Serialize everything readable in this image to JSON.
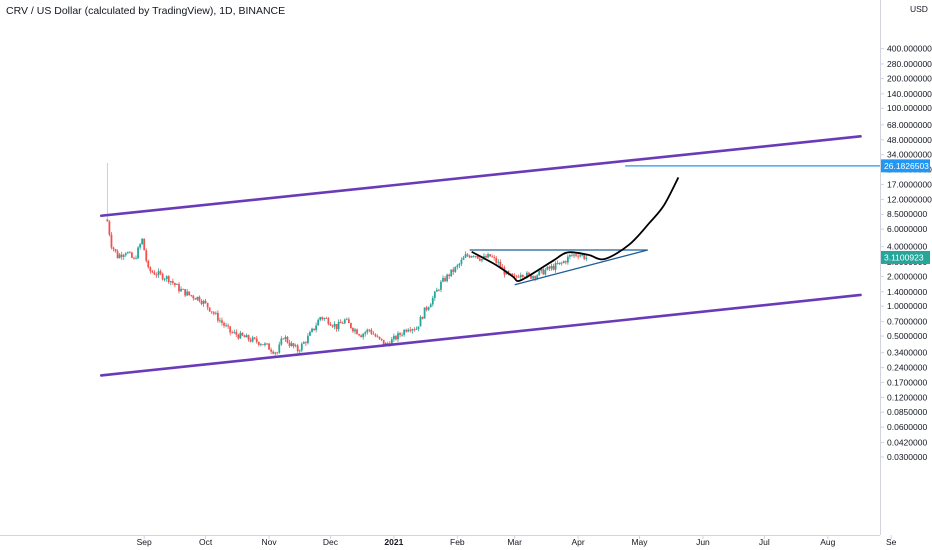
{
  "chart_data": {
    "type": "candlestick",
    "title": "CRV / US Dollar (calculated by TradingView), 1D, BINANCE",
    "y_scale": "log",
    "currency": "USD",
    "colors": {
      "up": "#26a69a",
      "down": "#ef5350",
      "channel": "#6a3ab8",
      "triangle": "#1f5f99",
      "projection": "#000000",
      "target_line": "#2196f3",
      "target_label_bg": "#2196f3",
      "last_price_bg": "#26a69a",
      "axis_text": "#131722",
      "axis_line": "#d1d4dc"
    },
    "y_ticks": [
      "400.0000000",
      "280.0000000",
      "200.0000000",
      "140.0000000",
      "100.0000000",
      "68.0000000",
      "48.0000000",
      "34.0000000",
      "24.0000000",
      "17.0000000",
      "12.0000000",
      "8.5000000",
      "6.0000000",
      "4.0000000",
      "2.8000000",
      "2.0000000",
      "1.4000000",
      "1.0000000",
      "0.7000000",
      "0.5000000",
      "0.3400000",
      "0.2400000",
      "0.1700000",
      "0.1200000",
      "0.0850000",
      "0.0600000",
      "0.0420000",
      "0.0300000"
    ],
    "x_ticks": [
      {
        "label": "Sep",
        "bold": false
      },
      {
        "label": "Oct",
        "bold": false
      },
      {
        "label": "Nov",
        "bold": false
      },
      {
        "label": "Dec",
        "bold": false
      },
      {
        "label": "2021",
        "bold": true
      },
      {
        "label": "Feb",
        "bold": false
      },
      {
        "label": "Mar",
        "bold": false
      },
      {
        "label": "Apr",
        "bold": false
      },
      {
        "label": "May",
        "bold": false
      },
      {
        "label": "Jun",
        "bold": false
      },
      {
        "label": "Jul",
        "bold": false
      },
      {
        "label": "Aug",
        "bold": false
      },
      {
        "label": "Se",
        "bold": false
      }
    ],
    "x_dates": [
      "2020-09-01",
      "2020-10-01",
      "2020-11-01",
      "2020-12-01",
      "2021-01-01",
      "2021-02-01",
      "2021-03-01",
      "2021-04-01",
      "2021-05-01",
      "2021-06-01",
      "2021-07-01",
      "2021-08-01",
      "2021-09-01"
    ],
    "last_price": {
      "value": 3.11,
      "label": "3.1100923"
    },
    "target": {
      "value": 26.18,
      "label": "26.1826503"
    },
    "price_path": [
      [
        "2020-08-14",
        7.2
      ],
      [
        "2020-08-16",
        4.2
      ],
      [
        "2020-08-19",
        3.2
      ],
      [
        "2020-08-23",
        3.6
      ],
      [
        "2020-08-27",
        2.9
      ],
      [
        "2020-08-31",
        4.7
      ],
      [
        "2020-09-03",
        2.3
      ],
      [
        "2020-09-08",
        2.1
      ],
      [
        "2020-09-13",
        1.9
      ],
      [
        "2020-09-18",
        1.5
      ],
      [
        "2020-09-23",
        1.3
      ],
      [
        "2020-09-28",
        1.2
      ],
      [
        "2020-10-03",
        0.95
      ],
      [
        "2020-10-08",
        0.72
      ],
      [
        "2020-10-13",
        0.55
      ],
      [
        "2020-10-18",
        0.5
      ],
      [
        "2020-10-23",
        0.46
      ],
      [
        "2020-10-28",
        0.43
      ],
      [
        "2020-11-02",
        0.37
      ],
      [
        "2020-11-05",
        0.34
      ],
      [
        "2020-11-08",
        0.5
      ],
      [
        "2020-11-11",
        0.42
      ],
      [
        "2020-11-15",
        0.36
      ],
      [
        "2020-11-19",
        0.45
      ],
      [
        "2020-11-23",
        0.6
      ],
      [
        "2020-11-26",
        0.78
      ],
      [
        "2020-11-30",
        0.72
      ],
      [
        "2020-12-04",
        0.62
      ],
      [
        "2020-12-08",
        0.72
      ],
      [
        "2020-12-12",
        0.6
      ],
      [
        "2020-12-16",
        0.52
      ],
      [
        "2020-12-20",
        0.58
      ],
      [
        "2020-12-24",
        0.47
      ],
      [
        "2020-12-28",
        0.41
      ],
      [
        "2020-12-31",
        0.45
      ],
      [
        "2021-01-04",
        0.52
      ],
      [
        "2021-01-08",
        0.62
      ],
      [
        "2021-01-12",
        0.6
      ],
      [
        "2021-01-16",
        0.9
      ],
      [
        "2021-01-20",
        1.2
      ],
      [
        "2021-01-24",
        1.7
      ],
      [
        "2021-01-28",
        2.1
      ],
      [
        "2021-02-01",
        2.5
      ],
      [
        "2021-02-05",
        3.2
      ],
      [
        "2021-02-09",
        3.4
      ],
      [
        "2021-02-13",
        3.0
      ],
      [
        "2021-02-17",
        3.2
      ],
      [
        "2021-02-21",
        2.7
      ],
      [
        "2021-02-25",
        2.1
      ],
      [
        "2021-03-01",
        1.9
      ],
      [
        "2021-03-04",
        2.2
      ],
      [
        "2021-03-08",
        2.0
      ],
      [
        "2021-03-12",
        2.1
      ],
      [
        "2021-03-16",
        2.3
      ],
      [
        "2021-03-20",
        2.5
      ],
      [
        "2021-03-24",
        2.7
      ],
      [
        "2021-03-28",
        3.2
      ],
      [
        "2021-04-01",
        3.4
      ],
      [
        "2021-04-05",
        3.1
      ]
    ],
    "channel_lines": [
      {
        "name": "upper",
        "from": [
          "2020-08-11",
          8.2
        ],
        "to": [
          "2021-08-17",
          52
        ]
      },
      {
        "name": "lower",
        "from": [
          "2020-08-11",
          0.2
        ],
        "to": [
          "2021-08-17",
          1.3
        ]
      }
    ],
    "triangle_lines": [
      {
        "name": "resistance",
        "from": [
          "2021-02-07",
          3.7
        ],
        "to": [
          "2021-05-05",
          3.7
        ]
      },
      {
        "name": "support",
        "from": [
          "2021-03-01",
          1.65
        ],
        "to": [
          "2021-05-05",
          3.7
        ]
      }
    ],
    "projection_path": [
      [
        "2021-02-08",
        3.55
      ],
      [
        "2021-02-20",
        2.6
      ],
      [
        "2021-02-28",
        2.0
      ],
      [
        "2021-03-03",
        1.8
      ],
      [
        "2021-03-10",
        2.15
      ],
      [
        "2021-03-20",
        2.9
      ],
      [
        "2021-03-27",
        3.5
      ],
      [
        "2021-04-06",
        3.3
      ],
      [
        "2021-04-14",
        3.0
      ],
      [
        "2021-04-26",
        4.2
      ],
      [
        "2021-05-06",
        7.0
      ],
      [
        "2021-05-13",
        10.5
      ],
      [
        "2021-05-20",
        20.0
      ]
    ],
    "target_line_from": "2021-04-24"
  }
}
